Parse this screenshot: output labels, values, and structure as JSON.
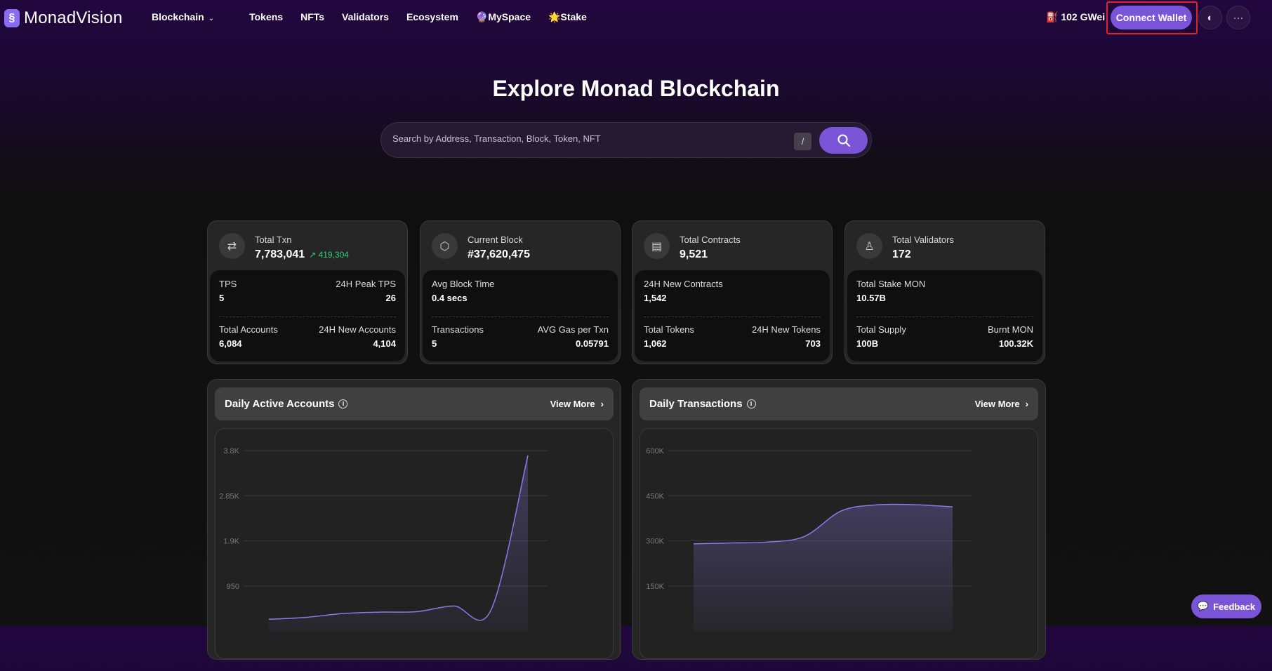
{
  "nav": {
    "logo": "MonadVision",
    "items": [
      "Blockchain",
      "Tokens",
      "NFTs",
      "Validators",
      "Ecosystem",
      "🔮MySpace",
      "🌟Stake"
    ],
    "gas": "102 GWei",
    "connect": "Connect Wallet",
    "theme_icon": "contrast-icon",
    "more_icon": "more-horizontal-icon"
  },
  "hero": {
    "title": "Explore Monad Blockchain",
    "placeholder": "Search by Address, Transaction, Block, Token, NFT",
    "shortcut": "/"
  },
  "cards": [
    {
      "icon": "swap-arrows-icon",
      "label": "Total Txn",
      "value": "7,783,041",
      "delta": "419,304",
      "rows": [
        [
          "TPS",
          "24H Peak TPS",
          "5",
          "26"
        ],
        [
          "Total Accounts",
          "24H New Accounts",
          "6,084",
          "4,104"
        ]
      ]
    },
    {
      "icon": "cube-icon",
      "label": "Current Block",
      "value": "#37,620,475",
      "rows": [
        [
          "Avg Block Time",
          "",
          "0.4 secs",
          ""
        ],
        [
          "Transactions",
          "AVG Gas per Txn",
          "5",
          "0.05791"
        ]
      ]
    },
    {
      "icon": "document-icon",
      "label": "Total Contracts",
      "value": "9,521",
      "rows": [
        [
          "24H New Contracts",
          "",
          "1,542",
          ""
        ],
        [
          "Total Tokens",
          "24H New Tokens",
          "1,062",
          "703"
        ]
      ]
    },
    {
      "icon": "user-check-icon",
      "label": "Total Validators",
      "value": "172",
      "rows": [
        [
          "Total Stake MON",
          "",
          "10.57B",
          ""
        ],
        [
          "Total Supply",
          "Burnt MON",
          "100B",
          "100.32K"
        ]
      ]
    }
  ],
  "panels": [
    {
      "title": "Daily Active Accounts",
      "view_more": "View More"
    },
    {
      "title": "Daily Transactions",
      "view_more": "View More"
    }
  ],
  "chart_data": [
    {
      "type": "area",
      "title": "Daily Active Accounts",
      "yticks": [
        "950",
        "1.9K",
        "2.85K",
        "3.8K"
      ],
      "ylim": [
        0,
        3800
      ],
      "values": [
        250,
        290,
        370,
        400,
        410,
        530,
        440,
        3700
      ],
      "color": "#8b7ae6",
      "grid": true
    },
    {
      "type": "area",
      "title": "Daily Transactions",
      "yticks": [
        "150K",
        "300K",
        "450K",
        "600K"
      ],
      "ylim": [
        0,
        600000
      ],
      "values": [
        290000,
        293000,
        296000,
        315000,
        400000,
        420000,
        420000,
        413000
      ],
      "color": "#8b7ae6",
      "grid": true
    }
  ],
  "feedback": "Feedback"
}
